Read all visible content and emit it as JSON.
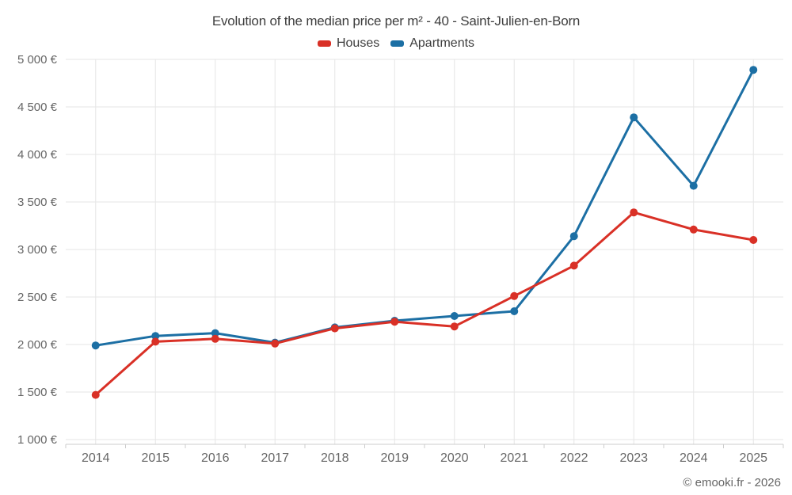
{
  "chart_data": {
    "type": "line",
    "title": "Evolution of the median price per m² - 40 - Saint-Julien-en-Born",
    "categories": [
      "2014",
      "2015",
      "2016",
      "2017",
      "2018",
      "2019",
      "2020",
      "2021",
      "2022",
      "2023",
      "2024",
      "2025"
    ],
    "series": [
      {
        "name": "Houses",
        "color": "#d93026",
        "values": [
          1470,
          2030,
          2060,
          2010,
          2170,
          2240,
          2190,
          2510,
          2830,
          3390,
          3210,
          3100
        ]
      },
      {
        "name": "Apartments",
        "color": "#1c6fa4",
        "values": [
          1990,
          2090,
          2120,
          2020,
          2180,
          2250,
          2300,
          2350,
          3140,
          4390,
          3670,
          4890
        ]
      }
    ],
    "xlabel": "",
    "ylabel": "",
    "ylim": [
      1000,
      5000
    ],
    "yticks": [
      {
        "value": 1000,
        "label": "1 000 €"
      },
      {
        "value": 1500,
        "label": "1 500 €"
      },
      {
        "value": 2000,
        "label": "2 000 €"
      },
      {
        "value": 2500,
        "label": "2 500 €"
      },
      {
        "value": 3000,
        "label": "3 000 €"
      },
      {
        "value": 3500,
        "label": "3 500 €"
      },
      {
        "value": 4000,
        "label": "4 000 €"
      },
      {
        "value": 4500,
        "label": "4 500 €"
      },
      {
        "value": 5000,
        "label": "5 000 €"
      }
    ],
    "grid": true,
    "legend_position": "top"
  },
  "footer": {
    "credit": "© emooki.fr - 2026"
  },
  "colors": {
    "grid": "#e6e6e6",
    "axis": "#cccccc",
    "label": "#666666",
    "title": "#3d3d3d",
    "background": "#ffffff"
  }
}
